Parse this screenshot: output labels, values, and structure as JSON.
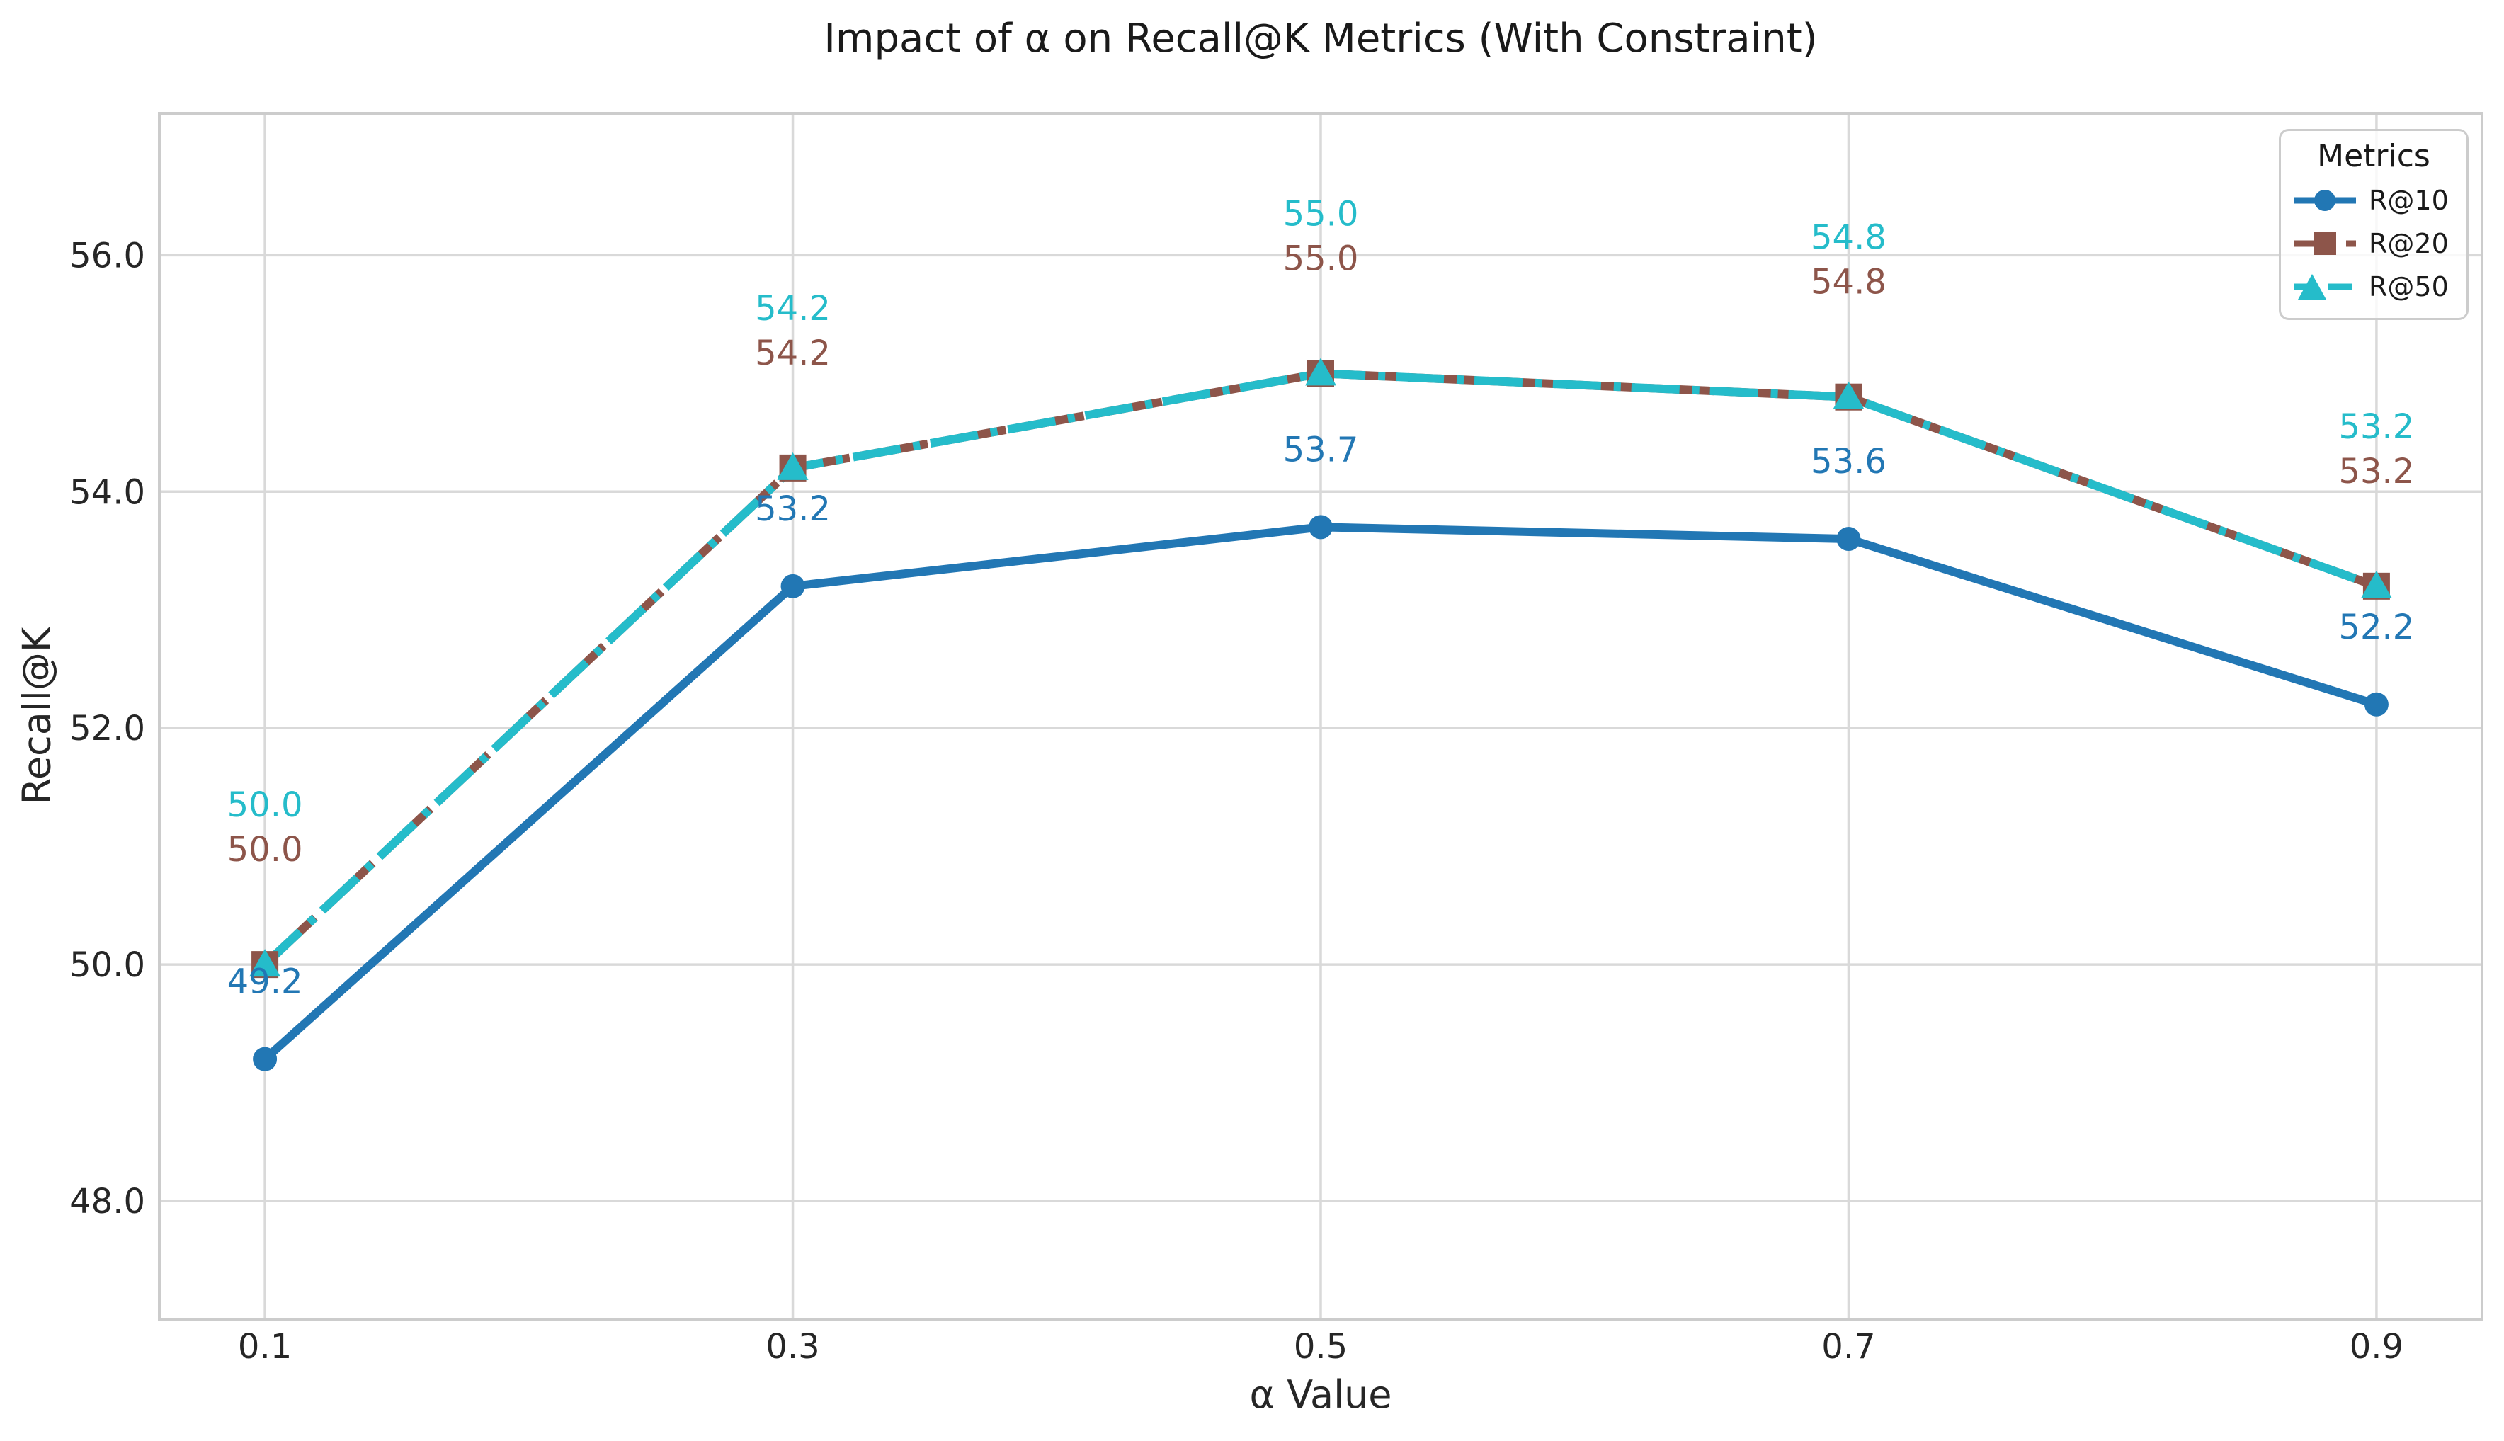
{
  "chart_data": {
    "type": "line",
    "title": "Impact of α on Recall@K Metrics (With Constraint)",
    "xlabel": "α Value",
    "ylabel": "Recall@K",
    "x": [
      0.1,
      0.3,
      0.5,
      0.7,
      0.9
    ],
    "x_tick_labels": [
      "0.1",
      "0.3",
      "0.5",
      "0.7",
      "0.9"
    ],
    "y_ticks": [
      48.0,
      50.0,
      52.0,
      54.0,
      56.0
    ],
    "y_tick_labels": [
      "48.0",
      "50.0",
      "52.0",
      "54.0",
      "56.0"
    ],
    "xlim": [
      0.06,
      0.94
    ],
    "ylim": [
      47.0,
      57.2
    ],
    "grid": true,
    "legend": {
      "title": "Metrics",
      "position": "upper right"
    },
    "series": [
      {
        "name": "R@10",
        "values": [
          49.2,
          53.2,
          53.7,
          53.6,
          52.2
        ],
        "color": "#2277b4",
        "style": "solid",
        "marker": "circle",
        "point_labels": [
          "49.2",
          "53.2",
          "53.7",
          "53.6",
          "52.2"
        ]
      },
      {
        "name": "R@20",
        "values": [
          50.0,
          54.2,
          55.0,
          54.8,
          53.2
        ],
        "color": "#8d554a",
        "style": "dashed",
        "marker": "square",
        "point_labels": [
          "50.0",
          "54.2",
          "55.0",
          "54.8",
          "53.2"
        ]
      },
      {
        "name": "R@50",
        "values": [
          50.0,
          54.2,
          55.0,
          54.8,
          53.2
        ],
        "color": "#25bcca",
        "style": "dashed",
        "marker": "triangle",
        "point_labels": [
          "50.0",
          "54.2",
          "55.0",
          "54.8",
          "53.2"
        ]
      }
    ],
    "colors": {
      "grid": "#d9d9d9",
      "spine": "#cccccc",
      "tick_text": "#262626"
    }
  }
}
